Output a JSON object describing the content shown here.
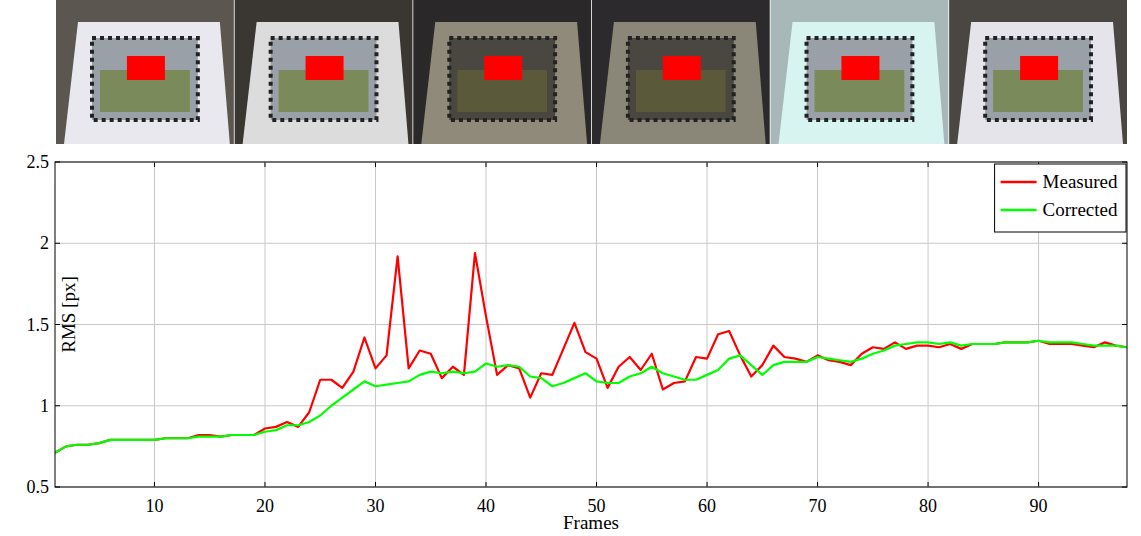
{
  "chart_data": {
    "type": "line",
    "x_label": "Frames",
    "y_label": "RMS [px]",
    "x": [
      1,
      2,
      3,
      4,
      5,
      6,
      7,
      8,
      9,
      10,
      11,
      12,
      13,
      14,
      15,
      16,
      17,
      18,
      19,
      20,
      21,
      22,
      23,
      24,
      25,
      26,
      27,
      28,
      29,
      30,
      31,
      32,
      33,
      34,
      35,
      36,
      37,
      38,
      39,
      40,
      41,
      42,
      43,
      44,
      45,
      46,
      47,
      48,
      49,
      50,
      51,
      52,
      53,
      54,
      55,
      56,
      57,
      58,
      59,
      60,
      61,
      62,
      63,
      64,
      65,
      66,
      67,
      68,
      69,
      70,
      71,
      72,
      73,
      74,
      75,
      76,
      77,
      78,
      79,
      80,
      81,
      82,
      83,
      84,
      85,
      86,
      87,
      88,
      89,
      90,
      91,
      92,
      93,
      94,
      95,
      96,
      97,
      98
    ],
    "series": [
      {
        "name": "Measured",
        "color": "#ff0000",
        "values": [
          0.71,
          0.75,
          0.76,
          0.76,
          0.77,
          0.79,
          0.79,
          0.79,
          0.79,
          0.79,
          0.8,
          0.8,
          0.8,
          0.82,
          0.82,
          0.81,
          0.82,
          0.82,
          0.82,
          0.86,
          0.87,
          0.9,
          0.87,
          0.96,
          1.16,
          1.16,
          1.11,
          1.21,
          1.42,
          1.23,
          1.31,
          1.92,
          1.23,
          1.34,
          1.32,
          1.17,
          1.24,
          1.19,
          1.94,
          1.55,
          1.19,
          1.25,
          1.23,
          1.05,
          1.2,
          1.19,
          1.35,
          1.51,
          1.33,
          1.29,
          1.11,
          1.24,
          1.3,
          1.22,
          1.32,
          1.1,
          1.14,
          1.15,
          1.3,
          1.29,
          1.44,
          1.46,
          1.31,
          1.18,
          1.25,
          1.37,
          1.3,
          1.29,
          1.27,
          1.31,
          1.28,
          1.27,
          1.25,
          1.32,
          1.36,
          1.35,
          1.39,
          1.35,
          1.37,
          1.37,
          1.36,
          1.38,
          1.35,
          1.38,
          1.38,
          1.38,
          1.39,
          1.39,
          1.39,
          1.4,
          1.38,
          1.38,
          1.38,
          1.37,
          1.36,
          1.39,
          1.37,
          1.36
        ]
      },
      {
        "name": "Corrected",
        "color": "#00ff00",
        "values": [
          0.71,
          0.75,
          0.76,
          0.76,
          0.77,
          0.79,
          0.79,
          0.79,
          0.79,
          0.79,
          0.8,
          0.8,
          0.8,
          0.81,
          0.81,
          0.81,
          0.82,
          0.82,
          0.82,
          0.84,
          0.85,
          0.88,
          0.88,
          0.9,
          0.94,
          1.0,
          1.05,
          1.1,
          1.15,
          1.12,
          1.13,
          1.14,
          1.15,
          1.19,
          1.21,
          1.2,
          1.21,
          1.2,
          1.21,
          1.26,
          1.24,
          1.25,
          1.24,
          1.18,
          1.17,
          1.12,
          1.14,
          1.17,
          1.2,
          1.15,
          1.14,
          1.14,
          1.18,
          1.2,
          1.24,
          1.2,
          1.18,
          1.16,
          1.16,
          1.19,
          1.22,
          1.29,
          1.31,
          1.25,
          1.19,
          1.25,
          1.27,
          1.27,
          1.27,
          1.3,
          1.29,
          1.28,
          1.27,
          1.29,
          1.32,
          1.34,
          1.37,
          1.38,
          1.39,
          1.39,
          1.38,
          1.39,
          1.37,
          1.38,
          1.38,
          1.38,
          1.39,
          1.39,
          1.39,
          1.4,
          1.39,
          1.39,
          1.39,
          1.38,
          1.37,
          1.37,
          1.37,
          1.36
        ]
      }
    ],
    "xlim": [
      1,
      98
    ],
    "xticks": [
      10,
      20,
      30,
      40,
      50,
      60,
      70,
      80,
      90
    ],
    "ylim": [
      0.5,
      2.5
    ],
    "yticks": [
      0.5,
      1,
      1.5,
      2,
      2.5
    ],
    "grid": true,
    "legend": "top-right"
  }
}
